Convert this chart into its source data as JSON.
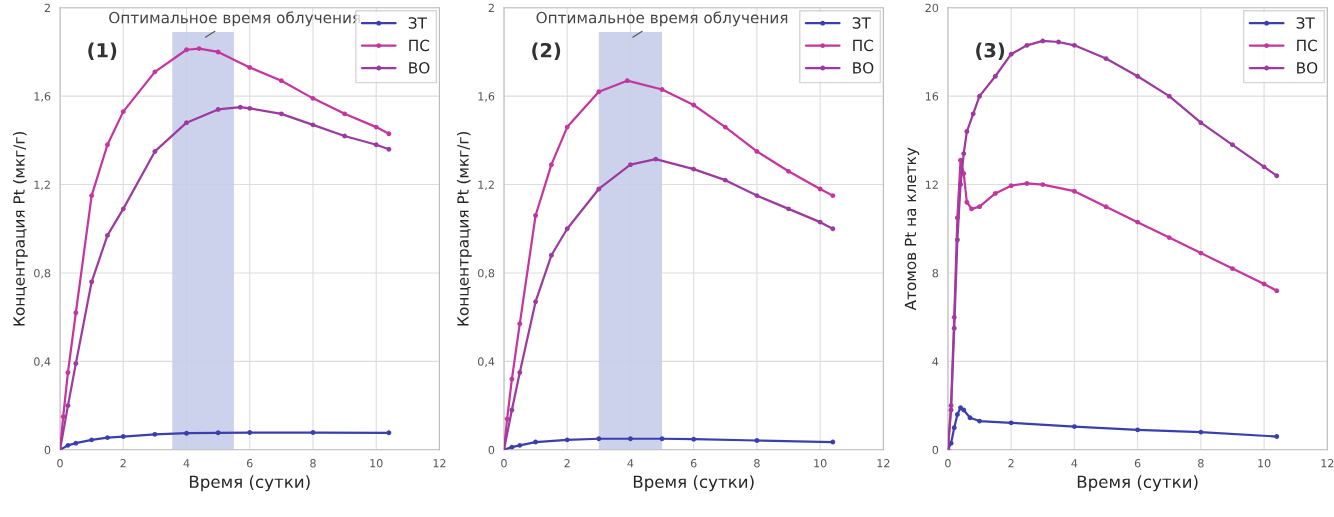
{
  "chart_data": [
    {
      "type": "line",
      "xlabel": "Время (сутки)",
      "ylabel": "Концентрация Pt (мкг/г)",
      "xlim": [
        0,
        12
      ],
      "xticks": [
        0,
        2,
        4,
        6,
        8,
        10,
        12
      ],
      "ylim": [
        0,
        2
      ],
      "yticks": [
        0,
        {
          "value": 0.4,
          "label": "0,4"
        },
        {
          "value": 0.8,
          "label": "0,8"
        },
        {
          "value": 1.2,
          "label": "1,2"
        },
        {
          "value": 1.6,
          "label": "1,6"
        },
        2
      ],
      "grid": true,
      "legend": "top right",
      "marker": "circle",
      "line_style": "solid",
      "bands": [
        {
          "axis": "x",
          "from": 3.55,
          "to": 5.5,
          "color": "#c6cde9",
          "label": "Оптимальное время облучения"
        }
      ],
      "annotations": [
        "(1)"
      ],
      "series": [
        {
          "name": "ЗТ",
          "color": "#3b3fae",
          "x": [
            0,
            0.25,
            0.5,
            1,
            1.5,
            2,
            3,
            4,
            5,
            6,
            8,
            10.4
          ],
          "values": [
            0,
            0.02,
            0.03,
            0.045,
            0.055,
            0.06,
            0.07,
            0.075,
            0.077,
            0.078,
            0.078,
            0.077
          ]
        },
        {
          "name": "ПС",
          "color": "#c4359e",
          "x": [
            0,
            0.1,
            0.25,
            0.5,
            1,
            1.5,
            2,
            3,
            4,
            4.4,
            5,
            6,
            7,
            8,
            9,
            10,
            10.4
          ],
          "values": [
            0,
            0.15,
            0.35,
            0.62,
            1.15,
            1.38,
            1.53,
            1.71,
            1.81,
            1.815,
            1.8,
            1.73,
            1.67,
            1.59,
            1.52,
            1.46,
            1.43
          ]
        },
        {
          "name": "ВО",
          "color": "#9c3aa0",
          "x": [
            0,
            0.25,
            0.5,
            1,
            1.5,
            2,
            3,
            4,
            5,
            5.7,
            6,
            7,
            8,
            9,
            10,
            10.4
          ],
          "values": [
            0,
            0.2,
            0.39,
            0.76,
            0.97,
            1.09,
            1.35,
            1.48,
            1.54,
            1.55,
            1.545,
            1.52,
            1.47,
            1.42,
            1.38,
            1.36
          ]
        }
      ]
    },
    {
      "type": "line",
      "xlabel": "Время (сутки)",
      "ylabel": "Концентрация Pt (мкг/г)",
      "xlim": [
        0,
        12
      ],
      "xticks": [
        0,
        2,
        4,
        6,
        8,
        10,
        12
      ],
      "ylim": [
        0,
        2
      ],
      "yticks": [
        0,
        {
          "value": 0.4,
          "label": "0,4"
        },
        {
          "value": 0.8,
          "label": "0,8"
        },
        {
          "value": 1.2,
          "label": "1,2"
        },
        {
          "value": 1.6,
          "label": "1,6"
        },
        2
      ],
      "grid": true,
      "legend": "top right",
      "marker": "circle",
      "line_style": "solid",
      "bands": [
        {
          "axis": "x",
          "from": 3.0,
          "to": 5.0,
          "color": "#c6cde9",
          "label": "Оптимальное время облучения"
        }
      ],
      "annotations": [
        "(2)"
      ],
      "series": [
        {
          "name": "ЗТ",
          "color": "#3b3fae",
          "x": [
            0,
            0.25,
            0.5,
            1,
            2,
            3,
            4,
            5,
            6,
            8,
            10.4
          ],
          "values": [
            0,
            0.012,
            0.02,
            0.035,
            0.045,
            0.05,
            0.05,
            0.05,
            0.048,
            0.042,
            0.035
          ]
        },
        {
          "name": "ПС",
          "color": "#c4359e",
          "x": [
            0,
            0.1,
            0.25,
            0.5,
            1,
            1.5,
            2,
            3,
            3.9,
            5,
            6,
            7,
            8,
            9,
            10,
            10.4
          ],
          "values": [
            0,
            0.14,
            0.32,
            0.57,
            1.06,
            1.29,
            1.46,
            1.62,
            1.67,
            1.63,
            1.56,
            1.46,
            1.35,
            1.26,
            1.18,
            1.15
          ]
        },
        {
          "name": "ВО",
          "color": "#9c3aa0",
          "x": [
            0,
            0.25,
            0.5,
            1,
            1.5,
            2,
            3,
            4,
            4.8,
            6,
            7,
            8,
            9,
            10,
            10.4
          ],
          "values": [
            0,
            0.18,
            0.35,
            0.67,
            0.88,
            1.0,
            1.18,
            1.29,
            1.315,
            1.27,
            1.22,
            1.15,
            1.09,
            1.03,
            1.0
          ]
        }
      ]
    },
    {
      "type": "line",
      "xlabel": "Время (сутки)",
      "ylabel": "Атомов Pt на клетку",
      "xlim": [
        0,
        12
      ],
      "xticks": [
        0,
        2,
        4,
        6,
        8,
        10,
        12
      ],
      "ylim": [
        0,
        20
      ],
      "yticks": [
        0,
        4,
        8,
        12,
        16,
        20
      ],
      "grid": true,
      "legend": "top right",
      "marker": "circle",
      "line_style": "solid",
      "annotations": [
        "(3)"
      ],
      "series": [
        {
          "name": "ЗТ",
          "color": "#3b3fae",
          "x": [
            0,
            0.1,
            0.2,
            0.3,
            0.4,
            0.5,
            0.7,
            1,
            2,
            4,
            6,
            8,
            10.4
          ],
          "values": [
            0,
            0.3,
            1.0,
            1.6,
            1.9,
            1.8,
            1.45,
            1.3,
            1.22,
            1.05,
            0.9,
            0.8,
            0.6
          ]
        },
        {
          "name": "ПС",
          "color": "#c4359e",
          "x": [
            0,
            0.1,
            0.2,
            0.3,
            0.4,
            0.5,
            0.6,
            0.75,
            1,
            1.5,
            2,
            2.5,
            3,
            4,
            5,
            6,
            7,
            8,
            9,
            10,
            10.4
          ],
          "values": [
            0,
            2,
            6,
            10.5,
            13.1,
            12.5,
            11.2,
            10.9,
            11.0,
            11.6,
            11.95,
            12.05,
            12.0,
            11.7,
            11.0,
            10.3,
            9.6,
            8.9,
            8.2,
            7.5,
            7.2
          ]
        },
        {
          "name": "ВО",
          "color": "#9c3aa0",
          "x": [
            0,
            0.1,
            0.2,
            0.3,
            0.4,
            0.5,
            0.6,
            0.8,
            1,
            1.5,
            2,
            2.5,
            3,
            3.5,
            4,
            5,
            6,
            7,
            8,
            9,
            10,
            10.4
          ],
          "values": [
            0,
            1.8,
            5.5,
            9.5,
            12,
            13.4,
            14.4,
            15.2,
            16,
            16.9,
            17.9,
            18.3,
            18.5,
            18.45,
            18.3,
            17.7,
            16.9,
            16,
            14.8,
            13.8,
            12.8,
            12.4
          ]
        }
      ]
    }
  ]
}
